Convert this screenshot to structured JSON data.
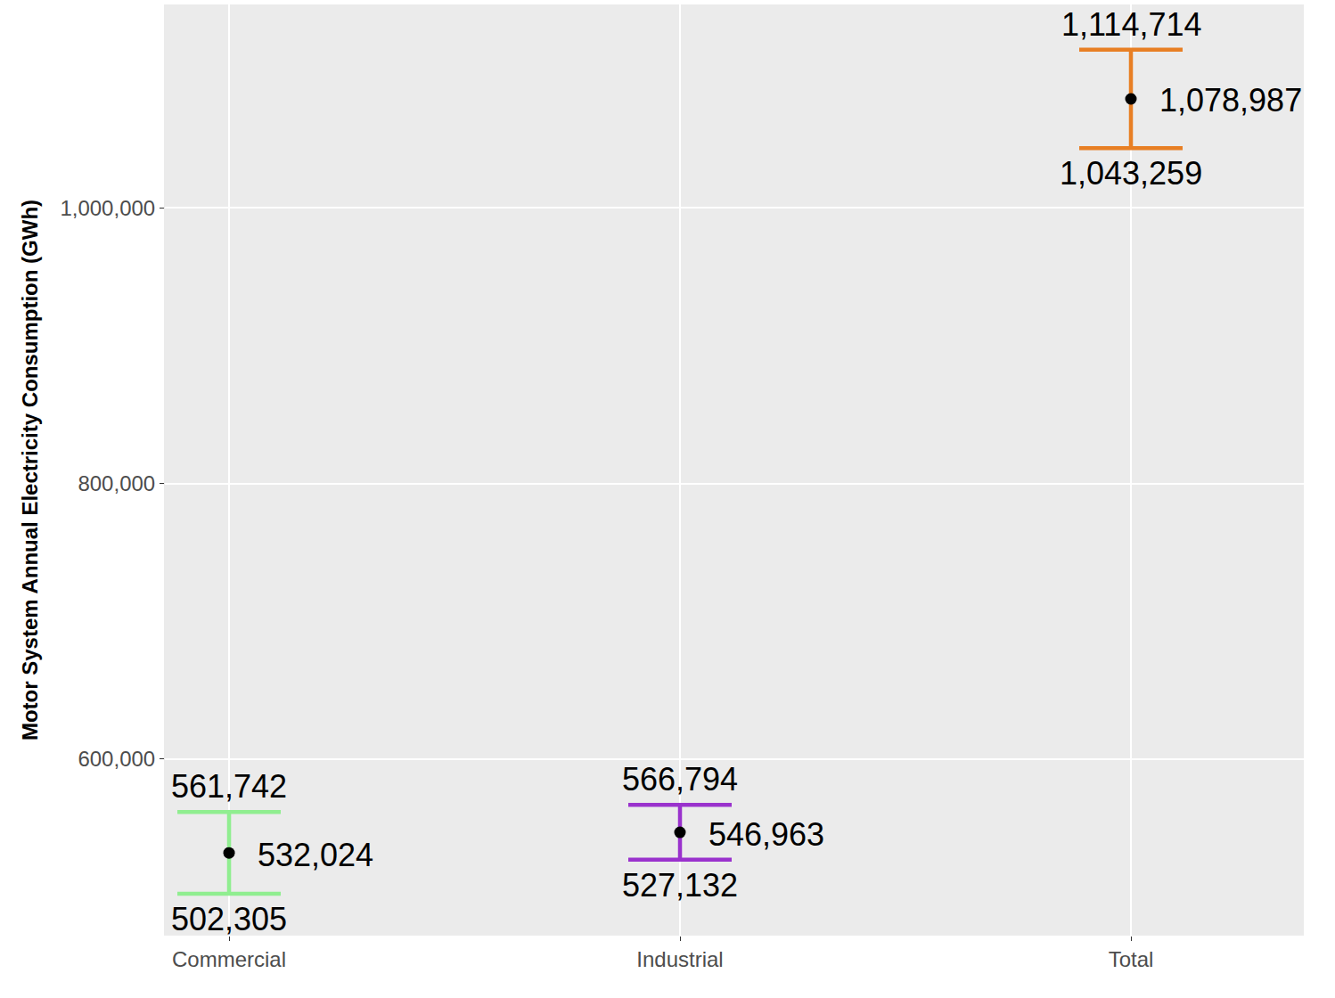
{
  "chart_data": {
    "type": "errorbar",
    "y_label": "Motor System Annual Electricity Consumption (GWh)",
    "categories": [
      "Commercial",
      "Industrial",
      "Total"
    ],
    "values": [
      532024,
      546963,
      1078987
    ],
    "value_labels": [
      "532,024",
      "546,963",
      "1,078,987"
    ],
    "lower": [
      502305,
      527132,
      1043259
    ],
    "lower_labels": [
      "502,305",
      "527,132",
      "1,043,259"
    ],
    "upper": [
      561742,
      566794,
      1114714
    ],
    "upper_labels": [
      "561,742",
      "566,794",
      "1,114,714"
    ],
    "colors": [
      "#90EE90",
      "#9A32CD",
      "#E87F24"
    ],
    "marker": "circle",
    "ylim": [
      472000,
      1147500
    ],
    "yticks": [
      {
        "value": 600000,
        "label": "600,000"
      },
      {
        "value": 800000,
        "label": "800,000"
      },
      {
        "value": 1000000,
        "label": "1,000,000"
      }
    ],
    "grid": true,
    "data_labels": true
  }
}
